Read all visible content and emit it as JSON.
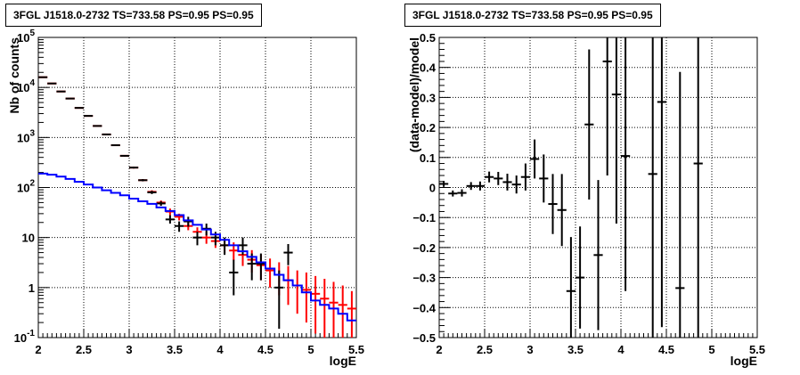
{
  "panels": {
    "left": {
      "title": "3FGL J1518.0-2732 TS=733.58 PS=0.95 PS=0.95"
    },
    "right": {
      "title": "3FGL J1518.0-2732 TS=733.58 PS=0.95 PS=0.95"
    }
  },
  "chart_data": [
    {
      "type": "scatter",
      "title": "3FGL J1518.0-2732 TS=733.58 PS=0.95 PS=0.95",
      "xlabel": "logE",
      "ylabel": "Nb of counts",
      "xlim": [
        2,
        5.5
      ],
      "ylim": [
        0.1,
        100000
      ],
      "yscale": "log",
      "grid": true,
      "x_ticks": [
        "2",
        "2.5",
        "3",
        "3.5",
        "4",
        "4.5",
        "5",
        "5.5"
      ],
      "y_ticks": [
        "10^-1",
        "1",
        "10",
        "10^2",
        "10^3",
        "10^4",
        "10^5"
      ],
      "series": [
        {
          "color": "#ff0000",
          "points": [
            {
              "x": 2.05,
              "y": 16000,
              "elo": 15750,
              "ehi": 16250
            },
            {
              "x": 2.15,
              "y": 12000,
              "elo": 11800,
              "ehi": 12200
            },
            {
              "x": 2.25,
              "y": 8300,
              "elo": 8150,
              "ehi": 8450
            },
            {
              "x": 2.35,
              "y": 6000,
              "elo": 5900,
              "ehi": 6100
            },
            {
              "x": 2.45,
              "y": 3900,
              "elo": 3830,
              "ehi": 3970
            },
            {
              "x": 2.55,
              "y": 2700,
              "elo": 2650,
              "ehi": 2750
            },
            {
              "x": 2.65,
              "y": 1700,
              "elo": 1665,
              "ehi": 1735
            },
            {
              "x": 2.75,
              "y": 1150,
              "elo": 1125,
              "ehi": 1175
            },
            {
              "x": 2.85,
              "y": 700,
              "elo": 680,
              "ehi": 720
            },
            {
              "x": 2.95,
              "y": 430,
              "elo": 415,
              "ehi": 445
            },
            {
              "x": 3.05,
              "y": 250,
              "elo": 240,
              "ehi": 260
            },
            {
              "x": 3.15,
              "y": 140,
              "elo": 133,
              "ehi": 147
            },
            {
              "x": 3.25,
              "y": 82,
              "elo": 76,
              "ehi": 88
            },
            {
              "x": 3.35,
              "y": 50,
              "elo": 45,
              "ehi": 55
            },
            {
              "x": 3.45,
              "y": 33,
              "elo": 28,
              "ehi": 38
            },
            {
              "x": 3.55,
              "y": 26,
              "elo": 22,
              "ehi": 30
            },
            {
              "x": 3.65,
              "y": 17,
              "elo": 14,
              "ehi": 21
            },
            {
              "x": 3.75,
              "y": 13,
              "elo": 10,
              "ehi": 16
            },
            {
              "x": 3.85,
              "y": 10,
              "elo": 7.5,
              "ehi": 13
            },
            {
              "x": 3.95,
              "y": 8.5,
              "elo": 6.2,
              "ehi": 11.5
            },
            {
              "x": 4.05,
              "y": 7,
              "elo": 4.8,
              "ehi": 9.5
            },
            {
              "x": 4.15,
              "y": 5.5,
              "elo": 3.5,
              "ehi": 8
            },
            {
              "x": 4.25,
              "y": 4.5,
              "elo": 2.7,
              "ehi": 6.8
            },
            {
              "x": 4.35,
              "y": 3.6,
              "elo": 2.0,
              "ehi": 5.6
            },
            {
              "x": 4.45,
              "y": 2.8,
              "elo": 1.4,
              "ehi": 4.6
            },
            {
              "x": 4.55,
              "y": 2.2,
              "elo": 1.0,
              "ehi": 3.8
            },
            {
              "x": 4.65,
              "y": 1.8,
              "elo": 0.7,
              "ehi": 3.2
            },
            {
              "x": 4.75,
              "y": 1.4,
              "elo": 0.45,
              "ehi": 2.7
            },
            {
              "x": 4.85,
              "y": 1.1,
              "elo": 0.3,
              "ehi": 2.2
            },
            {
              "x": 4.95,
              "y": 0.9,
              "elo": 0.2,
              "ehi": 2.0
            },
            {
              "x": 5.05,
              "y": 0.75,
              "elo": 0.12,
              "ehi": 1.7
            },
            {
              "x": 5.15,
              "y": 0.6,
              "elo": 0.1,
              "ehi": 1.5
            },
            {
              "x": 5.25,
              "y": 0.5,
              "elo": 0.1,
              "ehi": 1.3
            },
            {
              "x": 5.35,
              "y": 0.45,
              "elo": 0.1,
              "ehi": 1.1
            },
            {
              "x": 5.45,
              "y": 0.38,
              "elo": 0.1,
              "ehi": 0.85
            }
          ]
        },
        {
          "color": "#000000",
          "points": [
            {
              "x": 2.05,
              "y": 16000,
              "elo": 15750,
              "ehi": 16250
            },
            {
              "x": 2.15,
              "y": 12000,
              "elo": 11800,
              "ehi": 12200
            },
            {
              "x": 2.25,
              "y": 8300,
              "elo": 8150,
              "ehi": 8450
            },
            {
              "x": 2.35,
              "y": 6000,
              "elo": 5900,
              "ehi": 6100
            },
            {
              "x": 2.45,
              "y": 3900,
              "elo": 3830,
              "ehi": 3970
            },
            {
              "x": 2.55,
              "y": 2700,
              "elo": 2650,
              "ehi": 2750
            },
            {
              "x": 2.65,
              "y": 1700,
              "elo": 1665,
              "ehi": 1735
            },
            {
              "x": 2.75,
              "y": 1150,
              "elo": 1125,
              "ehi": 1175
            },
            {
              "x": 2.85,
              "y": 700,
              "elo": 680,
              "ehi": 720
            },
            {
              "x": 2.95,
              "y": 430,
              "elo": 415,
              "ehi": 445
            },
            {
              "x": 3.05,
              "y": 250,
              "elo": 240,
              "ehi": 260
            },
            {
              "x": 3.15,
              "y": 140,
              "elo": 133,
              "ehi": 147
            },
            {
              "x": 3.25,
              "y": 80,
              "elo": 74,
              "ehi": 86
            },
            {
              "x": 3.35,
              "y": 48,
              "elo": 43,
              "ehi": 53
            },
            {
              "x": 3.45,
              "y": 23,
              "elo": 19,
              "ehi": 28
            },
            {
              "x": 3.55,
              "y": 17,
              "elo": 13,
              "ehi": 21
            },
            {
              "x": 3.65,
              "y": 21,
              "elo": 16.5,
              "ehi": 26
            },
            {
              "x": 3.75,
              "y": 10,
              "elo": 7,
              "ehi": 13
            },
            {
              "x": 3.85,
              "y": 15,
              "elo": 11,
              "ehi": 19
            },
            {
              "x": 3.95,
              "y": 10,
              "elo": 7,
              "ehi": 13
            },
            {
              "x": 4.05,
              "y": 7,
              "elo": 4.5,
              "ehi": 10
            },
            {
              "x": 4.15,
              "y": 2,
              "elo": 0.7,
              "ehi": 3.6
            },
            {
              "x": 4.25,
              "y": 7,
              "elo": 4.5,
              "ehi": 10
            },
            {
              "x": 4.35,
              "y": 3,
              "elo": 1.4,
              "ehi": 4.8
            },
            {
              "x": 4.45,
              "y": 3,
              "elo": 1.4,
              "ehi": 4.8
            },
            {
              "x": 4.65,
              "y": 1,
              "elo": 0.15,
              "ehi": 2.2
            },
            {
              "x": 4.75,
              "y": 5,
              "elo": 2.8,
              "ehi": 7.4
            }
          ]
        },
        {
          "color": "#0000ff",
          "step": true,
          "edges": [
            2.0,
            2.1,
            2.2,
            2.3,
            2.4,
            2.5,
            2.6,
            2.7,
            2.8,
            2.9,
            3.0,
            3.1,
            3.2,
            3.3,
            3.4,
            3.5,
            3.6,
            3.7,
            3.8,
            3.9,
            4.0,
            4.1,
            4.2,
            4.3,
            4.4,
            4.5,
            4.6,
            4.7,
            4.8,
            4.9,
            5.0,
            5.1,
            5.2,
            5.3,
            5.4,
            5.5
          ],
          "values": [
            190,
            180,
            165,
            148,
            130,
            115,
            100,
            88,
            78,
            70,
            60,
            53,
            47,
            40,
            34,
            28,
            22,
            18,
            14.5,
            11.5,
            9,
            7,
            5.3,
            4.1,
            3.2,
            2.4,
            1.8,
            1.4,
            1.1,
            0.8,
            0.55,
            0.45,
            0.38,
            0.3,
            0.22
          ]
        }
      ]
    },
    {
      "type": "scatter",
      "title": "3FGL J1518.0-2732 TS=733.58 PS=0.95 PS=0.95",
      "xlabel": "logE",
      "ylabel": "(data-model)/model",
      "xlim": [
        2,
        5.5
      ],
      "ylim": [
        -0.5,
        0.5
      ],
      "grid": true,
      "x_ticks": [
        "2",
        "2.5",
        "3",
        "3.5",
        "4",
        "4.5",
        "5",
        "5.5"
      ],
      "y_ticks": [
        "−0.5",
        "−0.4",
        "−0.3",
        "−0.2",
        "−0.1",
        "0",
        "0.1",
        "0.2",
        "0.3",
        "0.4",
        "0.5"
      ],
      "series": [
        {
          "color": "#000000",
          "points": [
            {
              "x": 2.05,
              "y": 0.012,
              "e": 0.01
            },
            {
              "x": 2.15,
              "y": -0.02,
              "e": 0.01
            },
            {
              "x": 2.25,
              "y": -0.018,
              "e": 0.012
            },
            {
              "x": 2.35,
              "y": 0.005,
              "e": 0.013
            },
            {
              "x": 2.45,
              "y": 0.005,
              "e": 0.015
            },
            {
              "x": 2.55,
              "y": 0.035,
              "e": 0.018
            },
            {
              "x": 2.65,
              "y": 0.03,
              "e": 0.022
            },
            {
              "x": 2.75,
              "y": 0.018,
              "e": 0.028
            },
            {
              "x": 2.85,
              "y": 0.01,
              "e": 0.03
            },
            {
              "x": 2.95,
              "y": 0.035,
              "e": 0.045
            },
            {
              "x": 3.05,
              "y": 0.095,
              "e": 0.065
            },
            {
              "x": 3.15,
              "y": 0.03,
              "e": 0.08
            },
            {
              "x": 3.25,
              "y": -0.055,
              "e": 0.1
            },
            {
              "x": 3.35,
              "y": -0.075,
              "e": 0.12
            },
            {
              "x": 3.45,
              "y": -0.345,
              "e": 0.18
            },
            {
              "x": 3.55,
              "y": -0.3,
              "e": 0.17
            },
            {
              "x": 3.65,
              "y": 0.21,
              "e": 0.25
            },
            {
              "x": 3.75,
              "y": -0.225,
              "e": 0.25
            },
            {
              "x": 3.85,
              "y": 0.42,
              "e": 0.38
            },
            {
              "x": 3.95,
              "y": 0.31,
              "e": 0.43
            },
            {
              "x": 4.05,
              "y": 0.105,
              "e": 0.45
            },
            {
              "x": 4.35,
              "y": 0.045,
              "e": 0.6
            },
            {
              "x": 4.45,
              "y": 0.285,
              "e": 0.75
            },
            {
              "x": 4.65,
              "y": -0.335,
              "e": 0.72
            },
            {
              "x": 4.85,
              "y": 0.08,
              "e": 0.85
            }
          ]
        }
      ]
    }
  ]
}
